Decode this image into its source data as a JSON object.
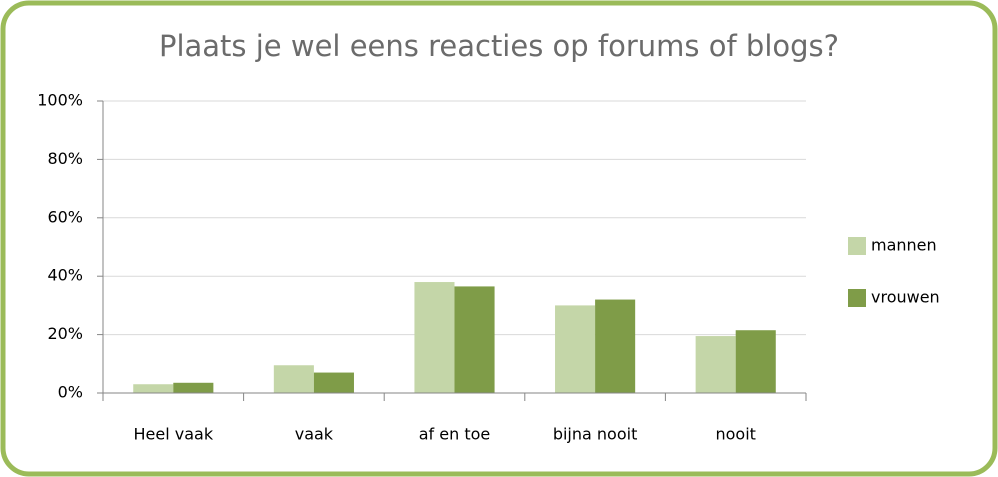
{
  "chart_data": {
    "type": "bar",
    "title": "Plaats je wel eens reacties op forums of blogs?",
    "categories": [
      "Heel vaak",
      "vaak",
      "af en toe",
      "bijna nooit",
      "nooit"
    ],
    "series": [
      {
        "name": "mannen",
        "color": "#c4d6a8",
        "values": [
          3,
          9.5,
          38,
          30,
          19.5
        ]
      },
      {
        "name": "vrouwen",
        "color": "#7f9c48",
        "values": [
          3.5,
          7,
          36.5,
          32,
          21.5
        ]
      }
    ],
    "ylim": [
      0,
      100
    ],
    "yticks": [
      {
        "value": 0,
        "label": "0%"
      },
      {
        "value": 20,
        "label": "20%"
      },
      {
        "value": 40,
        "label": "40%"
      },
      {
        "value": 60,
        "label": "60%"
      },
      {
        "value": 80,
        "label": "80%"
      },
      {
        "value": 100,
        "label": "100%"
      }
    ],
    "grid": true,
    "legend": "right"
  }
}
